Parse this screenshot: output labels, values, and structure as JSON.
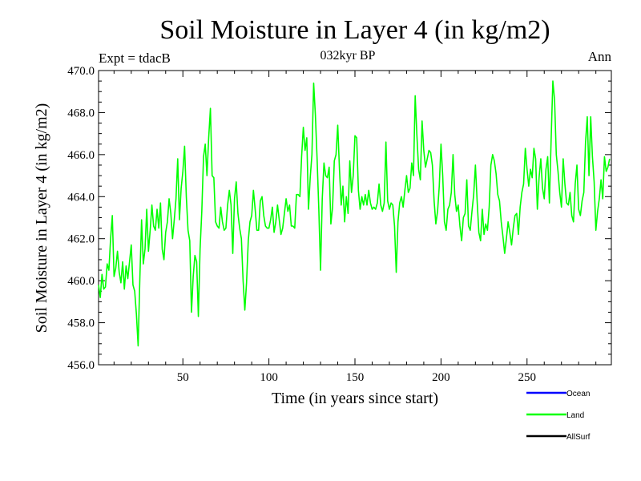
{
  "chart_data": {
    "type": "line",
    "title": "Soil Moisture in Layer 4 (in kg/m2)",
    "subtitle": "032kyr BP",
    "experiment_label": "Expt = tdacB",
    "season_label": "Ann",
    "xlabel": "Time (in years since start)",
    "ylabel": "Soil Moisture in Layer 4 (in kg/m2)",
    "xlim": [
      1,
      299
    ],
    "ylim": [
      456.0,
      470.0
    ],
    "x_ticks": [
      50,
      100,
      150,
      200,
      250
    ],
    "x_tick_labels": [
      "50",
      "100",
      "150",
      "200",
      "250"
    ],
    "y_ticks": [
      456.0,
      458.0,
      460.0,
      462.0,
      464.0,
      466.0,
      468.0,
      470.0
    ],
    "y_tick_labels": [
      "456.0",
      "458.0",
      "460.0",
      "462.0",
      "464.0",
      "466.0",
      "468.0",
      "470.0"
    ],
    "legend": [
      {
        "name": "Ocean",
        "color": "#0000ff"
      },
      {
        "name": "Land",
        "color": "#00ff00"
      },
      {
        "name": "AllSurf",
        "color": "#000000"
      }
    ],
    "legend_position": "bottom-right",
    "series": [
      {
        "name": "Land",
        "color": "#00ff00",
        "x_start": 1,
        "x_step": 1,
        "values": [
          459.8,
          459.2,
          460.3,
          459.6,
          459.7,
          460.8,
          460.5,
          462.0,
          463.1,
          460.2,
          460.6,
          461.4,
          460.4,
          459.9,
          460.9,
          459.6,
          460.7,
          460.1,
          460.9,
          461.7,
          459.8,
          459.5,
          458.4,
          456.9,
          460.1,
          462.9,
          460.8,
          461.5,
          463.4,
          461.4,
          462.4,
          463.6,
          462.6,
          462.4,
          463.4,
          462.5,
          463.7,
          461.5,
          461.0,
          462.3,
          462.8,
          463.9,
          463.2,
          462.0,
          462.9,
          463.9,
          465.8,
          462.9,
          464.4,
          465.2,
          466.4,
          464.0,
          462.4,
          461.9,
          458.5,
          460.2,
          461.2,
          460.9,
          458.3,
          461.5,
          463.3,
          465.9,
          466.5,
          465.0,
          466.8,
          468.2,
          465.0,
          464.9,
          462.8,
          462.6,
          462.5,
          463.5,
          462.8,
          462.4,
          462.5,
          463.6,
          464.3,
          463.6,
          461.3,
          463.9,
          464.7,
          463.2,
          462.5,
          462.0,
          460.0,
          458.6,
          459.9,
          461.9,
          462.8,
          463.1,
          464.3,
          463.4,
          462.4,
          462.4,
          463.8,
          464.0,
          463.1,
          462.6,
          462.5,
          462.5,
          462.9,
          463.5,
          462.3,
          462.8,
          463.6,
          462.9,
          462.2,
          462.5,
          463.2,
          463.9,
          463.3,
          463.6,
          462.6,
          462.6,
          462.5,
          464.1,
          464.1,
          464.0,
          465.9,
          467.3,
          466.2,
          466.8,
          463.4,
          464.9,
          466.0,
          469.4,
          467.9,
          465.8,
          463.4,
          460.5,
          463.9,
          465.6,
          465.0,
          464.9,
          465.4,
          462.7,
          463.5,
          465.7,
          466.0,
          467.4,
          465.3,
          463.6,
          464.5,
          462.8,
          464.0,
          463.2,
          465.7,
          464.2,
          465.0,
          466.9,
          466.8,
          464.3,
          463.4,
          464.0,
          463.6,
          464.1,
          463.6,
          464.3,
          463.7,
          463.4,
          463.5,
          463.4,
          463.7,
          464.6,
          463.6,
          463.3,
          463.7,
          466.6,
          463.8,
          463.4,
          463.7,
          463.6,
          462.6,
          460.4,
          462.8,
          463.7,
          464.0,
          463.5,
          464.3,
          465.0,
          464.2,
          464.4,
          465.6,
          465.0,
          468.8,
          466.9,
          465.3,
          464.8,
          467.6,
          466.2,
          465.4,
          465.8,
          466.2,
          466.1,
          465.5,
          463.8,
          462.7,
          463.3,
          464.5,
          466.5,
          465.0,
          462.8,
          462.4,
          463.4,
          463.6,
          464.2,
          466.0,
          464.1,
          463.3,
          463.6,
          462.6,
          461.9,
          463.0,
          463.2,
          464.8,
          462.6,
          462.4,
          463.3,
          464.1,
          465.5,
          463.8,
          462.3,
          461.9,
          463.4,
          462.2,
          462.7,
          462.4,
          463.5,
          465.5,
          466.0,
          465.7,
          465.1,
          464.1,
          463.8,
          462.8,
          462.1,
          461.3,
          462.0,
          462.8,
          462.3,
          461.7,
          462.5,
          463.1,
          463.2,
          462.2,
          463.5,
          464.2,
          464.6,
          466.3,
          465.3,
          464.5,
          465.3,
          464.9,
          466.3,
          465.8,
          463.4,
          464.9,
          465.8,
          464.4,
          463.9,
          465.3,
          465.9,
          463.7,
          466.7,
          469.5,
          468.6,
          466.0,
          465.2,
          464.2,
          463.5,
          465.8,
          464.6,
          463.7,
          463.6,
          464.2,
          463.1,
          462.8,
          464.6,
          465.5,
          463.4,
          463.1,
          463.8,
          464.2,
          466.6,
          467.8,
          465.0,
          467.8,
          465.9,
          464.7,
          462.4,
          463.3,
          463.9,
          464.8,
          463.9,
          465.9,
          465.2,
          465.4,
          465.8
        ]
      }
    ]
  }
}
